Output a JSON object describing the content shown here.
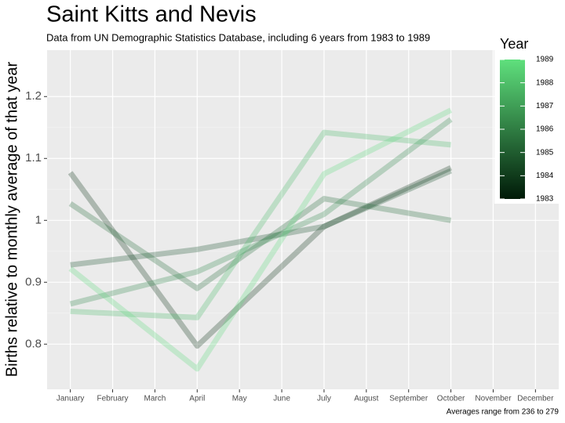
{
  "chart_data": {
    "type": "line",
    "title": "Saint Kitts and Nevis",
    "subtitle": "Data from UN Demographic Statistics Database, including 6 years from 1983 to 1989",
    "ylabel": "Births relative to monthly average of that year",
    "caption": "Averages range from 236 to 279",
    "categories": [
      "January",
      "February",
      "March",
      "April",
      "May",
      "June",
      "July",
      "August",
      "September",
      "October",
      "November",
      "December"
    ],
    "series": [
      {
        "name": 1983,
        "color": "#0a3316",
        "x": [
          "January",
          "April",
          "July",
          "October"
        ],
        "values": [
          1.077,
          0.797,
          0.99,
          1.085
        ]
      },
      {
        "name": 1984,
        "color": "#17502a",
        "x": [
          "January",
          "April",
          "July",
          "October"
        ],
        "values": [
          0.928,
          0.953,
          0.99,
          1.08
        ]
      },
      {
        "name": 1985,
        "color": "#246b3a",
        "x": [
          "January",
          "April",
          "July",
          "October"
        ],
        "values": [
          1.027,
          0.89,
          1.035,
          1.0
        ]
      },
      {
        "name": 1986,
        "color": "#2f874a",
        "x": [
          "January",
          "April",
          "July",
          "October"
        ],
        "values": [
          0.865,
          0.917,
          1.01,
          1.163
        ]
      },
      {
        "name": 1988,
        "color": "#49bc69",
        "x": [
          "January",
          "April",
          "July",
          "October"
        ],
        "values": [
          0.853,
          0.843,
          1.142,
          1.122
        ]
      },
      {
        "name": 1989,
        "color": "#5edc7c",
        "x": [
          "January",
          "April",
          "July",
          "October"
        ],
        "values": [
          0.922,
          0.76,
          1.075,
          1.178
        ]
      }
    ],
    "ylim": [
      0.727,
      1.275
    ],
    "yticks": [
      0.8,
      0.9,
      1.0,
      1.1,
      1.2
    ],
    "grid": true,
    "legend": {
      "title": "Year",
      "position": "right",
      "limits": [
        1983,
        1989
      ],
      "ticks": [
        1983,
        1984,
        1985,
        1986,
        1987,
        1988,
        1989
      ],
      "low": "#001a08",
      "high": "#5fe07d"
    }
  }
}
